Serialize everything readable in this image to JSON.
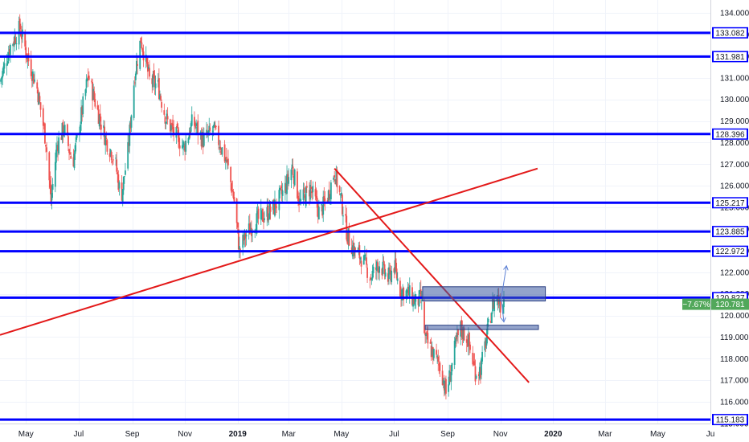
{
  "chart_data": {
    "type": "candlestick",
    "x_range": [
      "2018-04-01",
      "2020-07-01"
    ],
    "y_range": [
      115.0,
      134.6
    ],
    "y_ticks": [
      "134.000",
      "133.000",
      "132.000",
      "131.000",
      "130.000",
      "129.000",
      "128.000",
      "127.000",
      "126.000",
      "125.000",
      "124.000",
      "123.000",
      "122.000",
      "121.000",
      "120.000",
      "119.000",
      "118.000",
      "117.000",
      "116.000",
      "115.000"
    ],
    "x_ticks": [
      {
        "date": "2018-05-01",
        "label": "May",
        "year": false
      },
      {
        "date": "2018-07-01",
        "label": "Jul",
        "year": false
      },
      {
        "date": "2018-09-01",
        "label": "Sep",
        "year": false
      },
      {
        "date": "2018-11-01",
        "label": "Nov",
        "year": false
      },
      {
        "date": "2019-01-01",
        "label": "2019",
        "year": true
      },
      {
        "date": "2019-03-01",
        "label": "Mar",
        "year": false
      },
      {
        "date": "2019-05-01",
        "label": "May",
        "year": false
      },
      {
        "date": "2019-07-01",
        "label": "Jul",
        "year": false
      },
      {
        "date": "2019-09-01",
        "label": "Sep",
        "year": false
      },
      {
        "date": "2019-11-01",
        "label": "Nov",
        "year": false
      },
      {
        "date": "2020-01-01",
        "label": "2020",
        "year": true
      },
      {
        "date": "2020-03-01",
        "label": "Mar",
        "year": false
      },
      {
        "date": "2020-05-01",
        "label": "May",
        "year": false
      },
      {
        "date": "2020-07-01",
        "label": "Ju",
        "year": false
      }
    ],
    "price_path": [
      [
        "2018-04-01",
        130.8
      ],
      [
        "2018-04-12",
        132.4
      ],
      [
        "2018-04-24",
        133.3
      ],
      [
        "2018-05-04",
        131.8
      ],
      [
        "2018-05-14",
        130.5
      ],
      [
        "2018-05-24",
        128.1
      ],
      [
        "2018-05-30",
        125.3
      ],
      [
        "2018-06-06",
        127.9
      ],
      [
        "2018-06-14",
        128.7
      ],
      [
        "2018-06-24",
        127.0
      ],
      [
        "2018-07-02",
        128.8
      ],
      [
        "2018-07-12",
        131.1
      ],
      [
        "2018-07-22",
        129.6
      ],
      [
        "2018-08-01",
        128.2
      ],
      [
        "2018-08-12",
        127.2
      ],
      [
        "2018-08-19",
        125.4
      ],
      [
        "2018-08-27",
        127.6
      ],
      [
        "2018-09-04",
        131.2
      ],
      [
        "2018-09-11",
        132.8
      ],
      [
        "2018-09-21",
        130.9
      ],
      [
        "2018-10-01",
        130.6
      ],
      [
        "2018-10-10",
        129.1
      ],
      [
        "2018-10-20",
        128.4
      ],
      [
        "2018-10-31",
        127.8
      ],
      [
        "2018-11-10",
        129.0
      ],
      [
        "2018-11-22",
        128.1
      ],
      [
        "2018-12-04",
        128.6
      ],
      [
        "2018-12-12",
        127.9
      ],
      [
        "2018-12-20",
        127.0
      ],
      [
        "2018-12-28",
        125.3
      ],
      [
        "2019-01-03",
        123.0
      ],
      [
        "2019-01-10",
        123.7
      ],
      [
        "2019-01-20",
        124.3
      ],
      [
        "2019-01-31",
        124.6
      ],
      [
        "2019-02-12",
        125.0
      ],
      [
        "2019-02-24",
        125.8
      ],
      [
        "2019-03-05",
        126.9
      ],
      [
        "2019-03-14",
        125.2
      ],
      [
        "2019-03-26",
        125.9
      ],
      [
        "2019-04-06",
        124.7
      ],
      [
        "2019-04-16",
        125.6
      ],
      [
        "2019-04-23",
        126.7
      ],
      [
        "2019-05-03",
        124.9
      ],
      [
        "2019-05-08",
        123.7
      ],
      [
        "2019-05-16",
        123.0
      ],
      [
        "2019-05-24",
        122.7
      ],
      [
        "2019-06-04",
        121.8
      ],
      [
        "2019-06-14",
        122.4
      ],
      [
        "2019-06-24",
        121.7
      ],
      [
        "2019-07-01",
        122.3
      ],
      [
        "2019-07-08",
        121.2
      ],
      [
        "2019-07-18",
        121.0
      ],
      [
        "2019-07-26",
        120.6
      ],
      [
        "2019-08-01",
        120.8
      ],
      [
        "2019-08-06",
        118.9
      ],
      [
        "2019-08-14",
        118.3
      ],
      [
        "2019-08-24",
        117.6
      ],
      [
        "2019-08-30",
        116.4
      ],
      [
        "2019-09-04",
        117.3
      ],
      [
        "2019-09-10",
        118.6
      ],
      [
        "2019-09-16",
        119.4
      ],
      [
        "2019-09-24",
        118.9
      ],
      [
        "2019-10-03",
        117.4
      ],
      [
        "2019-10-09",
        117.5
      ],
      [
        "2019-10-16",
        119.0
      ],
      [
        "2019-10-23",
        120.5
      ],
      [
        "2019-10-28",
        120.9
      ],
      [
        "2019-11-01",
        120.5
      ],
      [
        "2019-11-05",
        120.8
      ]
    ],
    "horizontal_levels": [
      {
        "value": 133.082,
        "label": "133.082"
      },
      {
        "value": 131.981,
        "label": "131.981"
      },
      {
        "value": 128.396,
        "label": "128.396"
      },
      {
        "value": 125.217,
        "label": "125.217"
      },
      {
        "value": 123.885,
        "label": "123.885"
      },
      {
        "value": 122.972,
        "label": "122.972"
      },
      {
        "value": 120.827,
        "label": "120.827"
      },
      {
        "value": 115.183,
        "label": "115.183"
      }
    ],
    "trend_lines": [
      {
        "from": [
          "2018-04-01",
          119.1
        ],
        "to": [
          "2019-12-14",
          126.8
        ]
      },
      {
        "from": [
          "2019-04-23",
          126.8
        ],
        "to": [
          "2019-12-04",
          116.9
        ]
      }
    ],
    "zones": [
      {
        "from": [
          "2019-08-03",
          121.33
        ],
        "to": [
          "2019-12-23",
          120.67
        ]
      },
      {
        "from": [
          "2019-08-06",
          119.55
        ],
        "to": [
          "2019-12-15",
          119.35
        ]
      }
    ],
    "projection_arrows": [
      {
        "from": [
          "2019-11-02",
          120.8
        ],
        "to": [
          "2019-11-08",
          122.3
        ]
      },
      {
        "from": [
          "2019-11-02",
          120.8
        ],
        "to": [
          "2019-11-05",
          119.7
        ]
      }
    ],
    "last_price": {
      "value": 120.781,
      "label": "120.781",
      "change": "−7.67%"
    },
    "colors": {
      "up": "#26a69a",
      "down": "#ef5350",
      "level": "#0000ff",
      "trend": "#e31919",
      "zone_fill": "#3c5aa0",
      "arrow": "#5b7fd4",
      "last_price": "#52a85b",
      "grid": "#f0f3fa",
      "axis_text": "#131722"
    }
  }
}
